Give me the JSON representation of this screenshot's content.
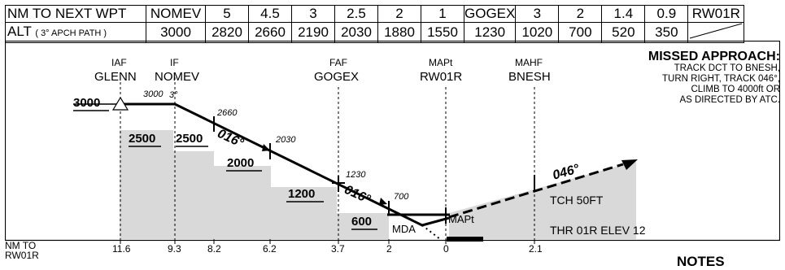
{
  "table": {
    "dist_header": "NM TO NEXT WPT",
    "dist_cells": [
      "NOMEV",
      "5",
      "4.5",
      "3",
      "2.5",
      "2",
      "1",
      "GOGEX",
      "3",
      "2",
      "1.4",
      "0.9",
      "RW01R"
    ],
    "alt_header_main": "ALT",
    "alt_header_sub": "( 3° APCH PATH )",
    "alt_cells": [
      "3000",
      "2820",
      "2660",
      "2190",
      "2030",
      "1880",
      "1550",
      "1230",
      "1020",
      "700",
      "520",
      "350",
      ""
    ]
  },
  "fixes": [
    {
      "type": "IAF",
      "name": "GLENN"
    },
    {
      "type": "IF",
      "name": "NOMEV"
    },
    {
      "type": "FAF",
      "name": "GOGEX"
    },
    {
      "type": "MAPt",
      "name": "RW01R"
    },
    {
      "type": "MAHF",
      "name": "BNESH"
    }
  ],
  "missed_approach": {
    "title": "MISSED APPROACH:",
    "lines": [
      "TRACK DCT TO BNESH,",
      "TURN RIGHT, TRACK 046°,",
      "CLIMB TO 4000ft OR",
      "AS DIRECTED BY ATC."
    ]
  },
  "profile": {
    "iaf_alt": "3000",
    "alts": [
      "3000",
      "2660",
      "2030",
      "1230",
      "700"
    ],
    "glide": "3°",
    "track_1": "016°",
    "track_2": "016°",
    "missed_track": "046°",
    "msa_boxes": [
      "2500",
      "2500",
      "2000",
      "1200",
      "600"
    ],
    "mda_label": "MDA",
    "mapt_label": "MAPt",
    "tch": "TCH 50FT",
    "thr": "THR 01R ELEV 12"
  },
  "axis": {
    "label": "NM TO RW01R",
    "ticks": [
      "11.6",
      "9.3",
      "8.2",
      "6.2",
      "3.7",
      "2",
      "0",
      "2.1"
    ]
  },
  "notes_title": "NOTES"
}
